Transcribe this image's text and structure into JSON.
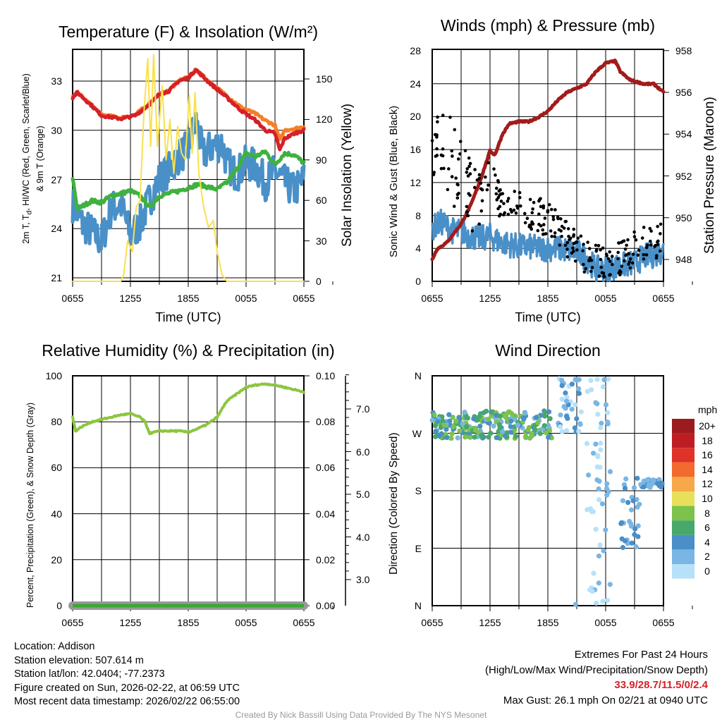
{
  "chart_data": [
    {
      "type": "line",
      "title": "Temperature (F) & Insolation (W/m²)",
      "xlabel": "Time (UTC)",
      "ylabel": "2m T, Td, HI/WC (Red, Green, Scarlet/Blue) & 9m T (Orange)",
      "ylabel_line1": "2m T, T",
      "ylabel_sub": "d",
      "ylabel_line1b": ", HI/WC (Red, Green, Scarlet/Blue)",
      "ylabel_line2": "& 9m T (Orange)",
      "y2label": "Solar Insolation (Yellow)",
      "ylim": [
        20.7,
        35.1
      ],
      "y2lim": [
        0,
        170
      ],
      "yticks": [
        "21",
        "24",
        "27",
        "30",
        "33"
      ],
      "y2ticks": [
        "0",
        "30",
        "60",
        "90",
        "120",
        "150"
      ],
      "xticks": [
        "0655",
        "1255",
        "1855",
        "0055",
        "0655"
      ],
      "x_hours": [
        0,
        24
      ],
      "series": [
        {
          "name": "2m T",
          "color": "#d62027",
          "points": [
            [
              0,
              32.0
            ],
            [
              0.5,
              32.3
            ],
            [
              2,
              31.5
            ],
            [
              3,
              30.9
            ],
            [
              5,
              30.7
            ],
            [
              6.5,
              30.9
            ],
            [
              8,
              31.6
            ],
            [
              9,
              32.2
            ],
            [
              10,
              32.4
            ],
            [
              11,
              33.0
            ],
            [
              12,
              33.2
            ],
            [
              12.8,
              33.7
            ],
            [
              14,
              33.0
            ],
            [
              16,
              32.0
            ],
            [
              17.5,
              31.2
            ],
            [
              19,
              30.6
            ],
            [
              20,
              30.0
            ],
            [
              21,
              29.8
            ],
            [
              21.5,
              28.8
            ],
            [
              22,
              29.5
            ],
            [
              23,
              29.8
            ],
            [
              24,
              30.0
            ]
          ]
        },
        {
          "name": "9m T",
          "color": "#f47f2a",
          "points": [
            [
              0,
              32.0
            ],
            [
              0.5,
              32.3
            ],
            [
              2,
              31.5
            ],
            [
              3,
              30.95
            ],
            [
              5,
              30.75
            ],
            [
              6.5,
              30.95
            ],
            [
              8,
              31.65
            ],
            [
              9,
              32.2
            ],
            [
              10,
              32.4
            ],
            [
              11,
              33.05
            ],
            [
              12,
              33.2
            ],
            [
              12.8,
              33.7
            ],
            [
              14,
              33.05
            ],
            [
              16,
              32.1
            ],
            [
              17.5,
              31.4
            ],
            [
              19,
              31.0
            ],
            [
              20,
              30.6
            ],
            [
              21,
              30.3
            ],
            [
              21.5,
              29.4
            ],
            [
              22,
              30.0
            ],
            [
              23,
              30.1
            ],
            [
              24,
              30.2
            ]
          ]
        },
        {
          "name": "Dewpoint",
          "color": "#3fb13f",
          "points": [
            [
              0,
              27.1
            ],
            [
              0.5,
              25.2
            ],
            [
              2,
              25.7
            ],
            [
              3,
              25.6
            ],
            [
              4,
              26.0
            ],
            [
              6,
              26.3
            ],
            [
              7,
              26.0
            ],
            [
              8,
              25.3
            ],
            [
              9,
              26.0
            ],
            [
              11,
              26.3
            ],
            [
              13,
              26.7
            ],
            [
              15,
              26.4
            ],
            [
              16,
              26.8
            ],
            [
              17,
              27.6
            ],
            [
              18,
              28.6
            ],
            [
              19,
              28.4
            ],
            [
              20,
              28.7
            ],
            [
              21,
              27.9
            ],
            [
              22,
              28.6
            ],
            [
              23,
              28.5
            ],
            [
              24,
              28.0
            ]
          ]
        },
        {
          "name": "HI/WC",
          "color": "#4a90c8",
          "noise": 1.1,
          "points": [
            [
              0,
              25.5
            ],
            [
              1,
              24.3
            ],
            [
              2,
              23.8
            ],
            [
              3,
              23.2
            ],
            [
              4,
              25.2
            ],
            [
              5,
              25.5
            ],
            [
              6,
              23.6
            ],
            [
              7,
              24.3
            ],
            [
              8,
              25.8
            ],
            [
              9,
              27.0
            ],
            [
              10,
              27.6
            ],
            [
              11,
              28.4
            ],
            [
              12,
              28.9
            ],
            [
              12.8,
              30.5
            ],
            [
              13.5,
              28.5
            ],
            [
              14.5,
              29.0
            ],
            [
              15.5,
              29.2
            ],
            [
              16,
              28.0
            ],
            [
              17,
              27.3
            ],
            [
              18,
              28.0
            ],
            [
              19,
              27.8
            ],
            [
              20,
              26.8
            ],
            [
              21,
              27.5
            ],
            [
              22,
              26.8
            ],
            [
              23,
              26.3
            ],
            [
              24,
              27.0
            ]
          ]
        },
        {
          "name": "Insolation",
          "color": "#f9e04b",
          "axis": "right",
          "points": [
            [
              0,
              0
            ],
            [
              5,
              0
            ],
            [
              5.3,
              5
            ],
            [
              5.7,
              30
            ],
            [
              6.2,
              22
            ],
            [
              6.6,
              55
            ],
            [
              7,
              60
            ],
            [
              7.4,
              125
            ],
            [
              7.8,
              165
            ],
            [
              8.1,
              100
            ],
            [
              8.4,
              168
            ],
            [
              8.8,
              100
            ],
            [
              9.3,
              145
            ],
            [
              9.7,
              90
            ],
            [
              10.1,
              120
            ],
            [
              10.5,
              80
            ],
            [
              10.9,
              115
            ],
            [
              11.3,
              95
            ],
            [
              11.7,
              90
            ],
            [
              12.1,
              138
            ],
            [
              12.4,
              95
            ],
            [
              12.7,
              140
            ],
            [
              13.1,
              80
            ],
            [
              13.6,
              55
            ],
            [
              14.1,
              40
            ],
            [
              14.6,
              45
            ],
            [
              15,
              22
            ],
            [
              15.5,
              5
            ],
            [
              16,
              0
            ],
            [
              24,
              0
            ]
          ]
        }
      ]
    },
    {
      "type": "line+scatter",
      "title": "Winds (mph) & Pressure (mb)",
      "xlabel": "Time (UTC)",
      "ylabel": "Sonic Wind & Gust (Blue, Black)",
      "y2label": "Station Pressure (Maroon)",
      "ylim": [
        0,
        28
      ],
      "y2lim": [
        947.0,
        958.1
      ],
      "yticks": [
        "0",
        "4",
        "8",
        "12",
        "16",
        "20",
        "24",
        "28"
      ],
      "y2ticks": [
        "948",
        "950",
        "952",
        "954",
        "956",
        "958"
      ],
      "xticks": [
        "0655",
        "1255",
        "1855",
        "0055",
        "0655"
      ],
      "wind": {
        "color": "#4a90c8",
        "noise": 1.6,
        "points": [
          [
            0,
            6.5
          ],
          [
            1,
            7.2
          ],
          [
            2,
            6.2
          ],
          [
            3,
            6.0
          ],
          [
            4,
            5.5
          ],
          [
            5,
            5.2
          ],
          [
            6,
            5.5
          ],
          [
            7,
            4.8
          ],
          [
            8,
            4.5
          ],
          [
            9,
            4.2
          ],
          [
            10,
            4.2
          ],
          [
            11,
            4.0
          ],
          [
            12,
            4.0
          ],
          [
            13,
            4.0
          ],
          [
            14,
            3.8
          ],
          [
            15,
            3.6
          ],
          [
            16,
            2.8
          ],
          [
            17,
            1.5
          ],
          [
            18,
            1.6
          ],
          [
            19,
            1.8
          ],
          [
            20,
            2.0
          ],
          [
            21,
            2.2
          ],
          [
            22,
            3.0
          ],
          [
            23,
            3.2
          ],
          [
            24,
            3.8
          ]
        ]
      },
      "gust": {
        "color": "#000000",
        "count": 260,
        "points": [
          [
            0,
            16
          ],
          [
            1,
            18
          ],
          [
            2,
            14.5
          ],
          [
            3,
            13
          ],
          [
            4,
            11
          ],
          [
            5,
            10
          ],
          [
            6,
            14
          ],
          [
            7,
            10
          ],
          [
            8,
            9.5
          ],
          [
            9,
            9
          ],
          [
            10,
            8.5
          ],
          [
            11,
            8
          ],
          [
            12,
            7.5
          ],
          [
            13,
            6.5
          ],
          [
            14,
            5
          ],
          [
            15,
            4
          ],
          [
            16,
            3
          ],
          [
            17,
            2.5
          ],
          [
            18,
            2.5
          ],
          [
            19,
            2.8
          ],
          [
            20,
            3
          ],
          [
            21,
            4
          ],
          [
            22,
            4.5
          ],
          [
            23,
            4.8
          ],
          [
            24,
            5.2
          ]
        ]
      },
      "pressure": {
        "color": "#a21b1b",
        "points": [
          [
            0,
            948.0
          ],
          [
            0.5,
            948.5
          ],
          [
            1.5,
            948.8
          ],
          [
            3,
            949.7
          ],
          [
            4,
            950.6
          ],
          [
            5,
            951.8
          ],
          [
            6,
            953.2
          ],
          [
            6.5,
            953.0
          ],
          [
            7.3,
            954.0
          ],
          [
            8,
            954.5
          ],
          [
            9,
            954.6
          ],
          [
            10,
            954.6
          ],
          [
            11,
            954.8
          ],
          [
            12,
            955.1
          ],
          [
            13,
            955.6
          ],
          [
            14,
            956.0
          ],
          [
            15,
            956.2
          ],
          [
            16,
            956.4
          ],
          [
            17,
            957.0
          ],
          [
            18,
            957.4
          ],
          [
            19,
            957.5
          ],
          [
            19.5,
            957.0
          ],
          [
            20.5,
            956.6
          ],
          [
            22,
            956.4
          ],
          [
            23,
            956.4
          ],
          [
            24,
            956.0
          ]
        ]
      }
    },
    {
      "type": "line",
      "title": "Relative Humidity (%) & Precipitation (in)",
      "ylabel": "Percent, Precipitation (Green), & Snow Depth (Gray)",
      "ylim": [
        0,
        100
      ],
      "y2lim": [
        0,
        0.1
      ],
      "yticks": [
        "0",
        "20",
        "40",
        "60",
        "80",
        "100"
      ],
      "y2ticks": [
        "0.00",
        "0.02",
        "0.04",
        "0.06",
        "0.08",
        "0.10"
      ],
      "y3ticks": [
        "3.0",
        "4.0",
        "5.0",
        "6.0",
        "7.0"
      ],
      "xticks": [
        "0655",
        "1255",
        "1855",
        "0055",
        "0655"
      ],
      "rh": {
        "color": "#8cc63f",
        "points": [
          [
            0,
            82
          ],
          [
            0.3,
            76
          ],
          [
            1,
            78
          ],
          [
            2,
            80
          ],
          [
            3,
            81
          ],
          [
            4,
            82
          ],
          [
            5,
            83
          ],
          [
            6,
            83.5
          ],
          [
            7,
            82
          ],
          [
            7.5,
            80
          ],
          [
            8,
            75
          ],
          [
            9,
            76
          ],
          [
            11,
            76
          ],
          [
            12,
            75.5
          ],
          [
            13,
            77
          ],
          [
            14,
            79
          ],
          [
            15,
            82
          ],
          [
            16,
            89
          ],
          [
            17,
            92
          ],
          [
            18,
            95
          ],
          [
            19,
            96
          ],
          [
            20,
            96.5
          ],
          [
            21,
            96
          ],
          [
            22,
            95
          ],
          [
            23,
            94
          ],
          [
            24,
            93
          ]
        ]
      },
      "precip": {
        "color": "#3aa935",
        "value": 0.0
      },
      "snow_depth": {
        "color": "#999999"
      }
    },
    {
      "type": "scatter",
      "title": "Wind Direction",
      "ylabel": "Direction (Colored By Speed)",
      "yticks": [
        "N",
        "E",
        "S",
        "W",
        "N"
      ],
      "xticks": [
        "0655",
        "1255",
        "1855",
        "0055",
        "0655"
      ],
      "clusters": [
        {
          "h": [
            0,
            12.5
          ],
          "dir": [
            262,
            305
          ],
          "spd": [
            3,
            10
          ],
          "n": 230
        },
        {
          "h": [
            13,
            15.5
          ],
          "dir": [
            272,
            362
          ],
          "spd": [
            1,
            5
          ],
          "n": 40
        },
        {
          "h": [
            16,
            18.5
          ],
          "dir": [
            0,
            360
          ],
          "spd": [
            0,
            4
          ],
          "n": 55
        },
        {
          "h": [
            19.5,
            21.5
          ],
          "dir": [
            90,
            200
          ],
          "spd": [
            2,
            5
          ],
          "n": 30
        },
        {
          "h": [
            21.5,
            24
          ],
          "dir": [
            185,
            198
          ],
          "spd": [
            3,
            5
          ],
          "n": 30
        }
      ],
      "colorbar": {
        "unit": "mph",
        "labels": [
          "20+",
          "18",
          "16",
          "14",
          "12",
          "10",
          "8",
          "6",
          "4",
          "2",
          "0"
        ],
        "colors": [
          "#9b1b1f",
          "#bd1e24",
          "#de3328",
          "#f26a2d",
          "#f7a848",
          "#e8e05a",
          "#7cc24c",
          "#46a86a",
          "#4a8fc7",
          "#7ab6e5",
          "#b7e1f8"
        ]
      }
    }
  ],
  "footer": {
    "location": "Location: Addison",
    "elevation": "Station elevation: 507.614 m",
    "latlon": "Station lat/lon: 42.0404; -77.2373",
    "created": "Figure created on Sun, 2026-02-22, at 06:59 UTC",
    "recent": "Most recent data timestamp: 2026/02/22 06:55:00",
    "extremes_title": "Extremes For Past 24 Hours",
    "extremes_sub": "(High/Low/Max Wind/Precipitation/Snow Depth)",
    "extremes_values": "33.9/28.7/11.5/0/2.4",
    "extremes_color": "#d62027",
    "max_gust": "Max Gust: 26.1 mph On 02/21 at 0940 UTC",
    "credit": "Created By Nick Bassill Using Data Provided By The NYS Mesonet"
  }
}
